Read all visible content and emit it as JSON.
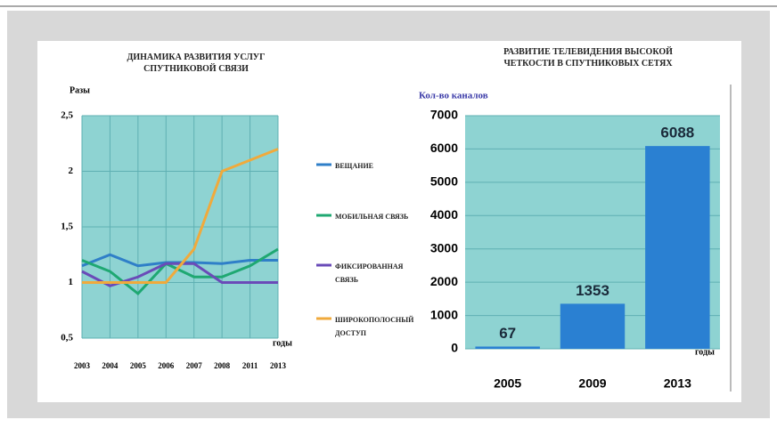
{
  "chart_data": [
    {
      "type": "line",
      "title": "ДИНАМИКА РАЗВИТИЯ  УСЛУГ СПУТНИКОВОЙ СВЯЗИ",
      "y_label": "Разы",
      "x_label": "годы",
      "categories": [
        "2003",
        "2004",
        "2005",
        "2006",
        "2007",
        "2008",
        "2011",
        "2013"
      ],
      "series": [
        {
          "name": "ВЕЩАНИЕ",
          "color": "#2f7fc8",
          "values": [
            1.15,
            1.25,
            1.15,
            1.18,
            1.18,
            1.17,
            1.2,
            1.2
          ]
        },
        {
          "name": "МОБИЛЬНАЯ СВЯЗЬ",
          "color": "#1fa872",
          "values": [
            1.2,
            1.1,
            0.9,
            1.17,
            1.05,
            1.05,
            1.15,
            1.3
          ]
        },
        {
          "name": "ФИКСИРОВАННАЯ СВЯЗЬ",
          "color": "#6a4bb8",
          "values": [
            1.1,
            0.97,
            1.05,
            1.17,
            1.17,
            1.0,
            1.0,
            1.0
          ]
        },
        {
          "name": "ШИРОКОПОЛОСНЫЙ ДОСТУП",
          "color": "#f0aa3c",
          "values": [
            1.0,
            1.0,
            1.0,
            1.0,
            1.3,
            2.0,
            2.1,
            2.2
          ]
        }
      ],
      "ylim": [
        0.5,
        2.5
      ],
      "yticks": [
        {
          "value": 0.5,
          "label": "0,5"
        },
        1,
        {
          "value": 1.5,
          "label": "1,5"
        },
        2,
        {
          "value": 2.5,
          "label": "2,5"
        }
      ],
      "grid": true
    },
    {
      "type": "bar",
      "title": "РАЗВИТИЕ ТЕЛЕВИДЕНИЯ ВЫСОКОЙ ЧЕТКОСТИ В СПУТНИКОВЫХ СЕТЯХ",
      "y_label": "Кол-во каналов",
      "x_label": "годы",
      "categories": [
        "2005",
        "2009",
        "2013"
      ],
      "values": [
        67,
        1353,
        6088
      ],
      "color": "#2a80d2",
      "ylim": [
        0,
        7000
      ],
      "yticks": [
        0,
        1000,
        2000,
        3000,
        4000,
        5000,
        6000,
        7000
      ],
      "grid": true
    }
  ]
}
